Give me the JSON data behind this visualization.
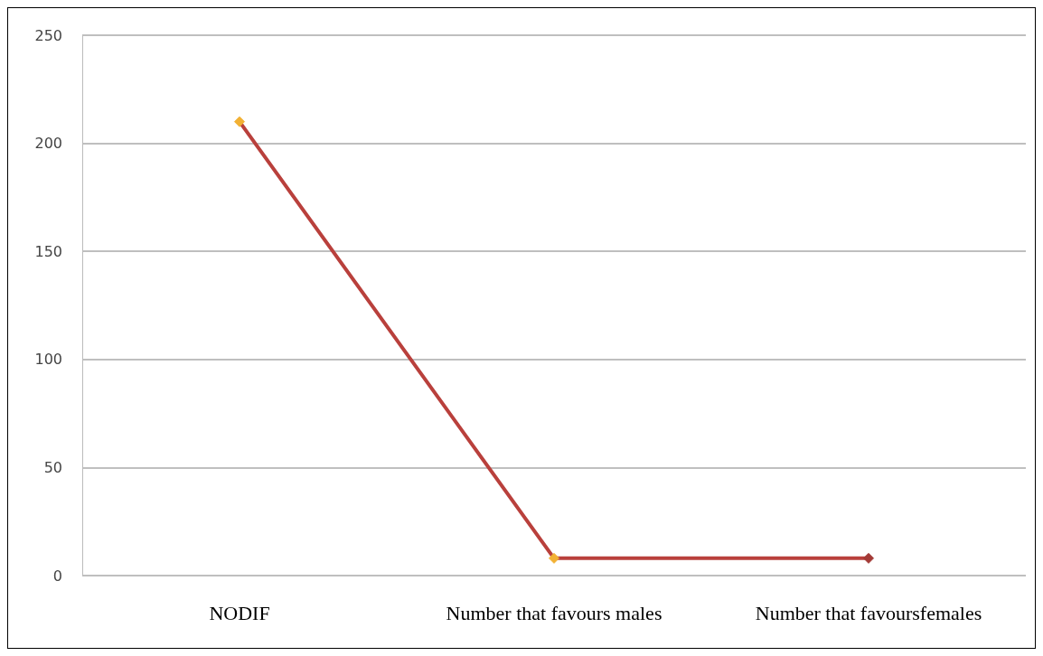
{
  "chart_data": {
    "type": "line",
    "categories": [
      "NODIF",
      "Number that favours males",
      "Number that favoursfemales"
    ],
    "values": [
      210,
      8,
      8
    ],
    "color": "#b9403c",
    "colors": [
      "#f2b134",
      "#f2b134",
      "#a33a36"
    ],
    "marker": "diamond",
    "ylim": [
      0,
      250
    ],
    "yticks": [
      0,
      50,
      100,
      150,
      200,
      250
    ],
    "grid": "y"
  }
}
